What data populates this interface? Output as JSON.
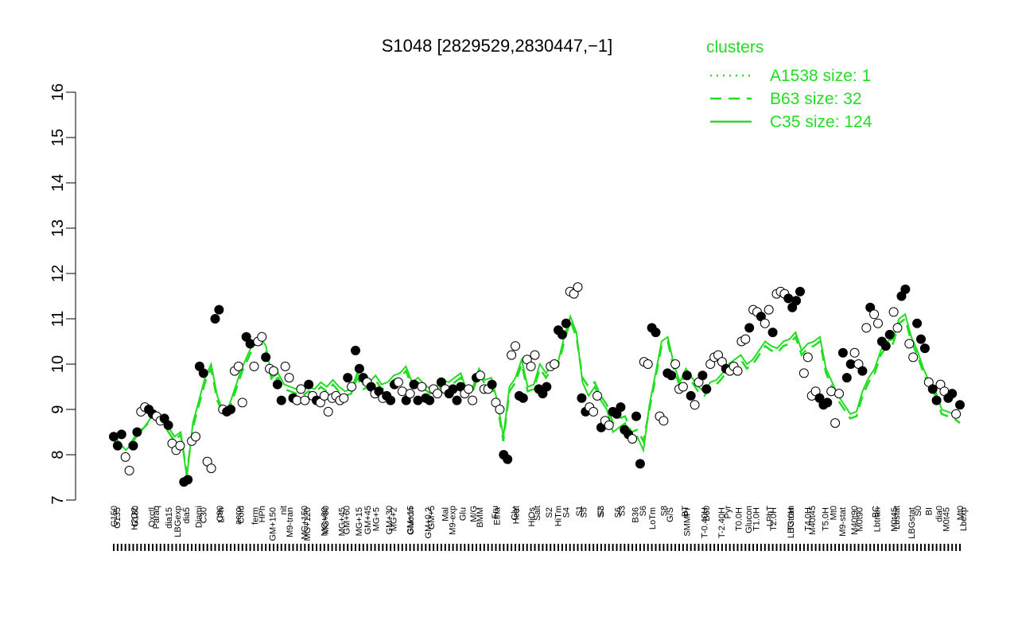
{
  "chart_data": {
    "type": "line",
    "title": "S1048 [2829529,2830447,−1]",
    "xlabel": "",
    "ylabel": "",
    "ylim": [
      7,
      16
    ],
    "yticks": [
      7,
      8,
      9,
      10,
      11,
      12,
      13,
      14,
      15,
      16
    ],
    "grid": false,
    "legend": {
      "title": "clusters",
      "placement": "top-right",
      "entries": [
        {
          "label": "A1538 size: 1",
          "style": "dotted"
        },
        {
          "label": "B63 size: 32",
          "style": "dashed"
        },
        {
          "label": "C35 size: 124",
          "style": "solid"
        }
      ]
    },
    "colors": {
      "line": "#22dd22",
      "point_stroke": "#000000",
      "open_fill": "#ffffff",
      "filled": "#000000"
    },
    "x_labels_upper": [
      "G135",
      "H2O2",
      "Oxctl",
      "dia15",
      "dia5",
      "C30",
      "LPh",
      "aero",
      "ferm",
      "GM+150",
      "M9-tran",
      "MG+120",
      "MG+60",
      "MG+45",
      "MG+15",
      "MG+5",
      "MG+2",
      "Glucon",
      "GM+0.2",
      "Mal",
      "Glu",
      "BMM",
      "Etha",
      "Gly",
      "HiOs",
      "S2",
      "S4",
      "S5",
      "S7",
      "S6",
      "B36",
      "LoTm",
      "G/S",
      "SMMPr",
      "T-0.40H",
      "T-2.40H",
      "T0.0H",
      "T1.0H",
      "T2.0H",
      "T3.0H",
      "T4.0H",
      "T5.0H",
      "M9-stat",
      "M0t90",
      "Lbtran",
      "M0t45",
      "LBGstat",
      "BI",
      "M0t45",
      "Lbexp"
    ],
    "x_labels_lower": [
      "G150",
      "G180",
      "Paraq",
      "LBGexp",
      "Diami",
      "C90",
      "Cold",
      "HPh",
      "nit",
      "MG+150",
      "MG+90",
      "GM+60",
      "GM+45",
      "GM+30",
      "GM+15",
      "GM+5",
      "M9-exp",
      "M/G",
      "Fru",
      "Heat",
      "Salt",
      "HiTm",
      "S1",
      "S3",
      "S3",
      "S6",
      "S8",
      "BT",
      "B60",
      "Pyr",
      "Glucon",
      "LPhT",
      "LBGtran",
      "M40t45",
      "Mt0",
      "M40t90",
      "BC",
      "Lbstat",
      "S0",
      "dia0",
      "Mt0"
    ],
    "series": [
      {
        "style": "solid",
        "values": [
          8.45,
          8.25,
          8.1,
          8.25,
          8.45,
          8.6,
          8.8,
          8.85,
          8.75,
          8.6,
          8.4,
          8.5,
          7.5,
          8.7,
          9.2,
          9.7,
          10.0,
          9.3,
          8.95,
          9.1,
          9.5,
          9.9,
          10.2,
          10.5,
          10.6,
          10.4,
          9.7,
          9.8,
          9.55,
          9.5,
          9.45,
          9.4,
          9.5,
          9.45,
          9.6,
          9.5,
          9.65,
          9.5,
          9.4,
          9.45,
          9.8,
          9.55,
          9.6,
          9.75,
          9.55,
          9.6,
          9.75,
          9.8,
          9.95,
          9.6,
          9.7,
          9.55,
          9.45,
          9.5,
          9.65,
          9.6,
          9.7,
          9.8,
          9.4,
          9.5,
          9.9,
          9.65,
          9.7,
          9.2,
          8.4,
          9.5,
          9.7,
          10.1,
          9.5,
          9.55,
          10.0,
          9.8,
          10.0,
          10.05,
          10.6,
          11.05,
          10.7,
          9.6,
          9.3,
          9.5,
          9.2,
          9.0,
          8.5,
          8.6,
          8.7,
          8.3,
          8.4,
          8.1,
          9.1,
          9.8,
          10.5,
          10.6,
          10.0,
          9.6,
          9.9,
          9.7,
          9.5,
          9.4,
          9.6,
          9.65,
          9.8,
          10.0,
          10.1,
          10.2,
          10.0,
          10.1,
          10.3,
          10.5,
          10.4,
          10.35,
          10.5,
          10.55,
          10.7,
          10.3,
          10.45,
          10.5,
          10.6,
          9.9,
          9.6,
          9.3,
          9.1,
          8.9,
          8.95,
          9.4,
          9.7,
          9.9,
          10.3,
          10.5,
          10.55,
          11.0,
          11.1,
          10.6,
          10.3,
          9.9,
          9.6,
          9.4,
          9.0,
          8.95,
          8.9,
          8.85
        ]
      },
      {
        "style": "dashed",
        "values": [
          8.3,
          8.2,
          8.15,
          8.3,
          8.5,
          8.6,
          8.75,
          8.8,
          8.7,
          8.5,
          8.3,
          8.45,
          7.6,
          8.6,
          9.1,
          9.6,
          9.9,
          9.2,
          8.9,
          9.0,
          9.4,
          9.8,
          10.1,
          10.4,
          10.5,
          10.3,
          9.6,
          9.7,
          9.45,
          9.4,
          9.35,
          9.3,
          9.4,
          9.35,
          9.5,
          9.4,
          9.55,
          9.4,
          9.3,
          9.35,
          9.7,
          9.45,
          9.5,
          9.65,
          9.45,
          9.5,
          9.65,
          9.7,
          9.85,
          9.5,
          9.6,
          9.45,
          9.35,
          9.4,
          9.55,
          9.5,
          9.6,
          9.7,
          9.3,
          9.4,
          9.8,
          9.55,
          9.6,
          9.1,
          8.3,
          9.4,
          9.6,
          10.0,
          9.4,
          9.45,
          9.9,
          9.7,
          9.9,
          9.95,
          10.5,
          10.95,
          10.6,
          9.7,
          9.5,
          9.6,
          9.3,
          9.1,
          8.7,
          8.8,
          8.85,
          8.5,
          8.55,
          8.3,
          9.0,
          9.7,
          10.4,
          10.5,
          9.9,
          9.5,
          9.8,
          9.6,
          9.4,
          9.3,
          9.5,
          9.55,
          9.7,
          9.9,
          10.0,
          10.1,
          9.9,
          10.0,
          10.2,
          10.4,
          10.3,
          10.25,
          10.4,
          10.45,
          10.6,
          10.2,
          10.35,
          10.4,
          10.5,
          9.8,
          9.5,
          9.2,
          9.0,
          8.8,
          8.85,
          9.3,
          9.6,
          9.8,
          10.2,
          10.4,
          10.45,
          10.9,
          11.0,
          10.5,
          10.2,
          9.8,
          9.5,
          9.3,
          8.9,
          8.85,
          8.8,
          8.7
        ]
      },
      {
        "style": "dotted",
        "values": [
          8.5
        ]
      }
    ],
    "points": [
      {
        "y": 8.4,
        "f": 1
      },
      {
        "y": 8.2,
        "f": 1
      },
      {
        "y": 8.45,
        "f": 1
      },
      {
        "y": 7.95,
        "f": 0
      },
      {
        "y": 7.65,
        "f": 0
      },
      {
        "y": 8.2,
        "f": 1
      },
      {
        "y": 8.5,
        "f": 1
      },
      {
        "y": 8.95,
        "f": 0
      },
      {
        "y": 9.05,
        "f": 0
      },
      {
        "y": 9.0,
        "f": 1
      },
      {
        "y": 8.9,
        "f": 1
      },
      {
        "y": 8.85,
        "f": 0
      },
      {
        "y": 8.75,
        "f": 0
      },
      {
        "y": 8.8,
        "f": 1
      },
      {
        "y": 8.65,
        "f": 1
      },
      {
        "y": 8.25,
        "f": 0
      },
      {
        "y": 8.1,
        "f": 0
      },
      {
        "y": 8.2,
        "f": 0
      },
      {
        "y": 7.4,
        "f": 1
      },
      {
        "y": 7.45,
        "f": 1
      },
      {
        "y": 8.3,
        "f": 0
      },
      {
        "y": 8.4,
        "f": 0
      },
      {
        "y": 9.95,
        "f": 1
      },
      {
        "y": 9.8,
        "f": 1
      },
      {
        "y": 7.85,
        "f": 0
      },
      {
        "y": 7.7,
        "f": 0
      },
      {
        "y": 11.0,
        "f": 1
      },
      {
        "y": 11.2,
        "f": 1
      },
      {
        "y": 9.0,
        "f": 0
      },
      {
        "y": 8.95,
        "f": 1
      },
      {
        "y": 9.0,
        "f": 1
      },
      {
        "y": 9.85,
        "f": 0
      },
      {
        "y": 9.95,
        "f": 0
      },
      {
        "y": 9.15,
        "f": 0
      },
      {
        "y": 10.6,
        "f": 1
      },
      {
        "y": 10.45,
        "f": 1
      },
      {
        "y": 9.95,
        "f": 0
      },
      {
        "y": 10.5,
        "f": 0
      },
      {
        "y": 10.6,
        "f": 0
      },
      {
        "y": 10.15,
        "f": 1
      },
      {
        "y": 9.9,
        "f": 0
      },
      {
        "y": 9.85,
        "f": 0
      },
      {
        "y": 9.55,
        "f": 1
      },
      {
        "y": 9.2,
        "f": 1
      },
      {
        "y": 9.95,
        "f": 0
      },
      {
        "y": 9.7,
        "f": 0
      },
      {
        "y": 9.25,
        "f": 1
      },
      {
        "y": 9.2,
        "f": 0
      },
      {
        "y": 9.45,
        "f": 0
      },
      {
        "y": 9.2,
        "f": 0
      },
      {
        "y": 9.55,
        "f": 1
      },
      {
        "y": 9.3,
        "f": 0
      },
      {
        "y": 9.2,
        "f": 1
      },
      {
        "y": 9.15,
        "f": 0
      },
      {
        "y": 9.3,
        "f": 0
      },
      {
        "y": 8.95,
        "f": 0
      },
      {
        "y": 9.25,
        "f": 0
      },
      {
        "y": 9.3,
        "f": 0
      },
      {
        "y": 9.2,
        "f": 0
      },
      {
        "y": 9.25,
        "f": 0
      },
      {
        "y": 9.7,
        "f": 1
      },
      {
        "y": 9.5,
        "f": 0
      },
      {
        "y": 10.3,
        "f": 1
      },
      {
        "y": 9.9,
        "f": 1
      },
      {
        "y": 9.7,
        "f": 1
      },
      {
        "y": 9.6,
        "f": 0
      },
      {
        "y": 9.5,
        "f": 1
      },
      {
        "y": 9.35,
        "f": 0
      },
      {
        "y": 9.4,
        "f": 1
      },
      {
        "y": 9.25,
        "f": 0
      },
      {
        "y": 9.3,
        "f": 1
      },
      {
        "y": 9.2,
        "f": 1
      },
      {
        "y": 9.55,
        "f": 1
      },
      {
        "y": 9.6,
        "f": 0
      },
      {
        "y": 9.4,
        "f": 0
      },
      {
        "y": 9.2,
        "f": 1
      },
      {
        "y": 9.35,
        "f": 0
      },
      {
        "y": 9.55,
        "f": 1
      },
      {
        "y": 9.2,
        "f": 1
      },
      {
        "y": 9.5,
        "f": 0
      },
      {
        "y": 9.25,
        "f": 1
      },
      {
        "y": 9.2,
        "f": 1
      },
      {
        "y": 9.45,
        "f": 0
      },
      {
        "y": 9.35,
        "f": 0
      },
      {
        "y": 9.6,
        "f": 1
      },
      {
        "y": 9.45,
        "f": 0
      },
      {
        "y": 9.35,
        "f": 1
      },
      {
        "y": 9.45,
        "f": 1
      },
      {
        "y": 9.2,
        "f": 1
      },
      {
        "y": 9.5,
        "f": 1
      },
      {
        "y": 9.35,
        "f": 0
      },
      {
        "y": 9.45,
        "f": 0
      },
      {
        "y": 9.2,
        "f": 0
      },
      {
        "y": 9.7,
        "f": 1
      },
      {
        "y": 9.75,
        "f": 0
      },
      {
        "y": 9.45,
        "f": 0
      },
      {
        "y": 9.45,
        "f": 0
      },
      {
        "y": 9.55,
        "f": 1
      },
      {
        "y": 9.15,
        "f": 0
      },
      {
        "y": 9.0,
        "f": 0
      },
      {
        "y": 8.0,
        "f": 1
      },
      {
        "y": 7.9,
        "f": 1
      },
      {
        "y": 10.2,
        "f": 0
      },
      {
        "y": 10.4,
        "f": 0
      },
      {
        "y": 9.3,
        "f": 1
      },
      {
        "y": 9.25,
        "f": 1
      },
      {
        "y": 10.1,
        "f": 0
      },
      {
        "y": 9.95,
        "f": 0
      },
      {
        "y": 10.2,
        "f": 0
      },
      {
        "y": 9.45,
        "f": 1
      },
      {
        "y": 9.35,
        "f": 1
      },
      {
        "y": 9.5,
        "f": 1
      },
      {
        "y": 9.95,
        "f": 0
      },
      {
        "y": 10.0,
        "f": 0
      },
      {
        "y": 10.75,
        "f": 1
      },
      {
        "y": 10.65,
        "f": 1
      },
      {
        "y": 10.9,
        "f": 1
      },
      {
        "y": 11.6,
        "f": 0
      },
      {
        "y": 11.55,
        "f": 0
      },
      {
        "y": 11.7,
        "f": 0
      },
      {
        "y": 9.25,
        "f": 1
      },
      {
        "y": 8.95,
        "f": 1
      },
      {
        "y": 9.05,
        "f": 0
      },
      {
        "y": 8.95,
        "f": 0
      },
      {
        "y": 9.3,
        "f": 0
      },
      {
        "y": 8.6,
        "f": 1
      },
      {
        "y": 8.75,
        "f": 0
      },
      {
        "y": 8.65,
        "f": 0
      },
      {
        "y": 8.95,
        "f": 1
      },
      {
        "y": 8.9,
        "f": 1
      },
      {
        "y": 9.05,
        "f": 1
      },
      {
        "y": 8.55,
        "f": 1
      },
      {
        "y": 8.45,
        "f": 1
      },
      {
        "y": 8.35,
        "f": 0
      },
      {
        "y": 8.85,
        "f": 1
      },
      {
        "y": 7.8,
        "f": 1
      },
      {
        "y": 10.05,
        "f": 0
      },
      {
        "y": 10.0,
        "f": 0
      },
      {
        "y": 10.8,
        "f": 1
      },
      {
        "y": 10.7,
        "f": 1
      },
      {
        "y": 8.85,
        "f": 0
      },
      {
        "y": 8.75,
        "f": 0
      },
      {
        "y": 9.8,
        "f": 1
      },
      {
        "y": 9.75,
        "f": 1
      },
      {
        "y": 10.0,
        "f": 0
      },
      {
        "y": 9.45,
        "f": 0
      },
      {
        "y": 9.5,
        "f": 0
      },
      {
        "y": 9.75,
        "f": 1
      },
      {
        "y": 9.3,
        "f": 1
      },
      {
        "y": 9.1,
        "f": 0
      },
      {
        "y": 9.6,
        "f": 0
      },
      {
        "y": 9.75,
        "f": 1
      },
      {
        "y": 9.45,
        "f": 1
      },
      {
        "y": 10.0,
        "f": 0
      },
      {
        "y": 10.15,
        "f": 0
      },
      {
        "y": 10.2,
        "f": 0
      },
      {
        "y": 10.05,
        "f": 0
      },
      {
        "y": 9.9,
        "f": 1
      },
      {
        "y": 9.85,
        "f": 0
      },
      {
        "y": 9.95,
        "f": 0
      },
      {
        "y": 9.85,
        "f": 0
      },
      {
        "y": 10.5,
        "f": 0
      },
      {
        "y": 10.55,
        "f": 0
      },
      {
        "y": 10.8,
        "f": 1
      },
      {
        "y": 11.2,
        "f": 0
      },
      {
        "y": 11.15,
        "f": 0
      },
      {
        "y": 11.05,
        "f": 1
      },
      {
        "y": 10.9,
        "f": 0
      },
      {
        "y": 11.2,
        "f": 0
      },
      {
        "y": 10.7,
        "f": 1
      },
      {
        "y": 11.55,
        "f": 0
      },
      {
        "y": 11.6,
        "f": 0
      },
      {
        "y": 11.55,
        "f": 0
      },
      {
        "y": 11.45,
        "f": 1
      },
      {
        "y": 11.25,
        "f": 1
      },
      {
        "y": 11.4,
        "f": 1
      },
      {
        "y": 11.6,
        "f": 1
      },
      {
        "y": 9.8,
        "f": 0
      },
      {
        "y": 10.15,
        "f": 0
      },
      {
        "y": 9.3,
        "f": 0
      },
      {
        "y": 9.4,
        "f": 0
      },
      {
        "y": 9.25,
        "f": 1
      },
      {
        "y": 9.1,
        "f": 1
      },
      {
        "y": 9.15,
        "f": 1
      },
      {
        "y": 9.4,
        "f": 0
      },
      {
        "y": 8.7,
        "f": 0
      },
      {
        "y": 9.35,
        "f": 0
      },
      {
        "y": 10.25,
        "f": 1
      },
      {
        "y": 9.7,
        "f": 1
      },
      {
        "y": 10.0,
        "f": 1
      },
      {
        "y": 10.25,
        "f": 0
      },
      {
        "y": 10.0,
        "f": 0
      },
      {
        "y": 9.85,
        "f": 1
      },
      {
        "y": 10.8,
        "f": 0
      },
      {
        "y": 11.25,
        "f": 1
      },
      {
        "y": 11.1,
        "f": 0
      },
      {
        "y": 10.9,
        "f": 0
      },
      {
        "y": 10.5,
        "f": 1
      },
      {
        "y": 10.4,
        "f": 1
      },
      {
        "y": 10.65,
        "f": 1
      },
      {
        "y": 11.15,
        "f": 0
      },
      {
        "y": 10.8,
        "f": 0
      },
      {
        "y": 11.5,
        "f": 1
      },
      {
        "y": 11.65,
        "f": 1
      },
      {
        "y": 10.45,
        "f": 0
      },
      {
        "y": 10.15,
        "f": 0
      },
      {
        "y": 10.9,
        "f": 1
      },
      {
        "y": 10.55,
        "f": 1
      },
      {
        "y": 10.35,
        "f": 1
      },
      {
        "y": 9.6,
        "f": 0
      },
      {
        "y": 9.45,
        "f": 1
      },
      {
        "y": 9.2,
        "f": 1
      },
      {
        "y": 9.55,
        "f": 0
      },
      {
        "y": 9.4,
        "f": 0
      },
      {
        "y": 9.25,
        "f": 1
      },
      {
        "y": 9.35,
        "f": 1
      },
      {
        "y": 8.9,
        "f": 0
      },
      {
        "y": 9.1,
        "f": 1
      }
    ]
  }
}
